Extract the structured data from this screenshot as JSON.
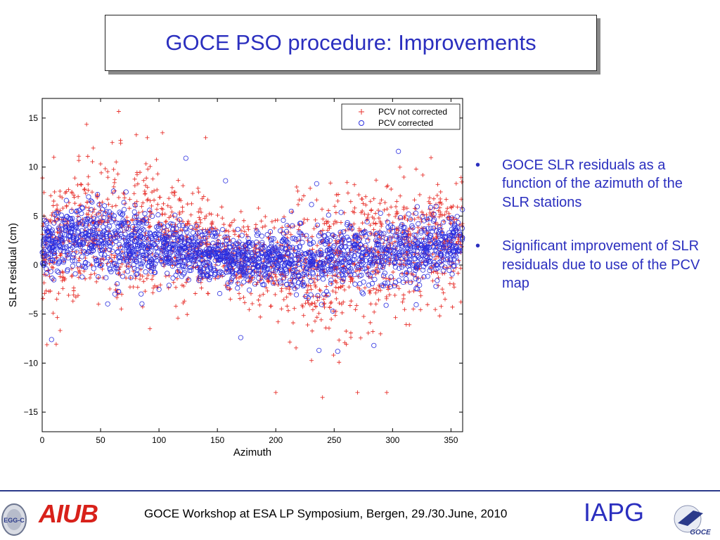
{
  "slide": {
    "title": "GOCE PSO procedure: Improvements",
    "bullets": [
      "GOCE SLR residuals as a function of the azimuth of the SLR stations",
      "Significant improvement of SLR residuals due to use of the PCV map"
    ],
    "footer": "GOCE Workshop at ESA LP Symposium, Bergen, 29./30.June, 2010",
    "logos": {
      "left_text": "AIUB",
      "right_text": "IAPG",
      "egg_text": "EGG-C",
      "goce_text": "GOCE"
    }
  },
  "colors": {
    "title": "#2b2fbf",
    "series_not_corrected": "#e8332e",
    "series_corrected": "#2b2fe0",
    "aiub": "#d8211a"
  },
  "chart_data": {
    "type": "scatter",
    "xlabel": "Azimuth",
    "ylabel": "SLR residual (cm)",
    "xlim": [
      0,
      360
    ],
    "ylim": [
      -17,
      17
    ],
    "xticks": [
      0,
      50,
      100,
      150,
      200,
      250,
      300,
      350
    ],
    "yticks": [
      -15,
      -10,
      -5,
      0,
      5,
      10,
      15
    ],
    "legend_position": "top-right",
    "series": [
      {
        "name": "PCV not corrected",
        "marker": "plus",
        "color": "#e8332e",
        "density_profile": {
          "azimuth": [
            0,
            20,
            40,
            60,
            80,
            100,
            120,
            140,
            160,
            180,
            200,
            220,
            240,
            260,
            280,
            300,
            320,
            340,
            360
          ],
          "center": [
            1.5,
            2.5,
            3.5,
            3.5,
            3.0,
            2.5,
            2.0,
            1.5,
            1.0,
            0.5,
            0.0,
            0.0,
            0.0,
            0.5,
            1.0,
            1.5,
            2.0,
            2.5,
            2.5
          ],
          "spread": [
            4.5,
            5.5,
            6.0,
            6.5,
            6.5,
            6.0,
            5.0,
            4.0,
            3.5,
            3.5,
            4.0,
            5.0,
            6.0,
            6.0,
            5.5,
            5.0,
            5.0,
            5.0,
            5.0
          ]
        },
        "highlighted_points": [
          [
            103,
            13.5
          ],
          [
            140,
            13.0
          ],
          [
            200,
            -13.0
          ],
          [
            240,
            -13.5
          ],
          [
            270,
            -13.0
          ],
          [
            295,
            -13.0
          ],
          [
            10,
            11.0
          ],
          [
            60,
            12.5
          ],
          [
            90,
            13.0
          ]
        ]
      },
      {
        "name": "PCV corrected",
        "marker": "circle",
        "color": "#2b2fe0",
        "density_profile": {
          "azimuth": [
            0,
            20,
            40,
            60,
            80,
            100,
            120,
            140,
            160,
            180,
            200,
            220,
            240,
            260,
            280,
            300,
            320,
            340,
            360
          ],
          "center": [
            2.0,
            2.5,
            3.0,
            2.5,
            2.0,
            1.5,
            1.5,
            1.0,
            0.5,
            0.5,
            0.5,
            0.5,
            0.5,
            1.0,
            1.0,
            1.5,
            1.5,
            2.0,
            2.5
          ],
          "spread": [
            2.5,
            3.0,
            3.5,
            3.5,
            3.0,
            2.5,
            2.5,
            2.0,
            2.0,
            2.0,
            2.0,
            2.5,
            2.5,
            3.0,
            3.0,
            3.0,
            3.0,
            2.5,
            2.5
          ]
        },
        "highlighted_points": [
          [
            123,
            10.9
          ],
          [
            305,
            11.6
          ],
          [
            8,
            -7.6
          ],
          [
            170,
            -7.4
          ],
          [
            237,
            -8.7
          ],
          [
            253,
            -8.8
          ],
          [
            284,
            -8.2
          ],
          [
            157,
            8.6
          ],
          [
            235,
            8.3
          ]
        ]
      }
    ]
  }
}
